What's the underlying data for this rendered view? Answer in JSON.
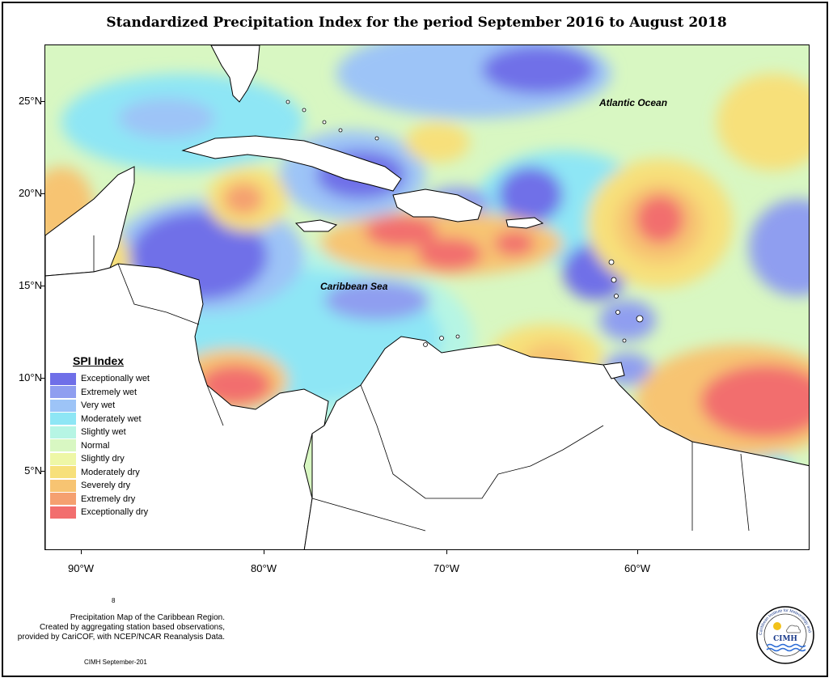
{
  "title": "Standardized Precipitation Index for the period September 2016 to August 2018",
  "map_labels": {
    "atlantic": "Atlantic Ocean",
    "caribbean": "Caribbean Sea"
  },
  "lat_ticks": [
    "25°N",
    "20°N",
    "15°N",
    "10°N",
    "5°N"
  ],
  "lon_ticks": [
    "90°W",
    "80°W",
    "70°W",
    "60°W"
  ],
  "legend": {
    "title": "SPI Index",
    "items": [
      {
        "label": "Exceptionally wet",
        "color": "#6f6fe8"
      },
      {
        "label": "Extremely wet",
        "color": "#8f9ef0"
      },
      {
        "label": "Very wet",
        "color": "#9dc4f7"
      },
      {
        "label": "Moderately wet",
        "color": "#8ee6f5"
      },
      {
        "label": "Slightly wet",
        "color": "#b6f5e4"
      },
      {
        "label": "Normal",
        "color": "#d8f7c2"
      },
      {
        "label": "Slightly dry",
        "color": "#eef7a6"
      },
      {
        "label": "Moderately dry",
        "color": "#f7e07a"
      },
      {
        "label": "Severely dry",
        "color": "#f7c472"
      },
      {
        "label": "Extremely dry",
        "color": "#f5a070"
      },
      {
        "label": "Exceptionally dry",
        "color": "#f26e6e"
      }
    ]
  },
  "footer": {
    "line1": "Precipitation Map of the Caribbean Region.",
    "line2": "Created by aggregating station based observations,",
    "line3": "provided by CariCOF, with NCEP/NCAR Reanalysis Data."
  },
  "credit": "CIMH September-201",
  "stray": "8",
  "logo": {
    "text": "CIMH",
    "ring": "Caribbean Institute for Meteorology and Hydrology"
  }
}
